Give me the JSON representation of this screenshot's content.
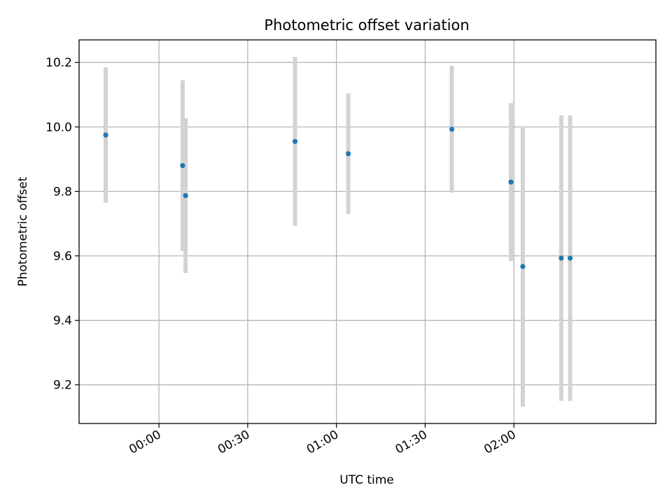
{
  "chart_data": {
    "type": "scatter",
    "title": "Photometric offset variation",
    "xlabel": "UTC time",
    "ylabel": "Photometric offset",
    "x_ticks": [
      "00:00",
      "00:30",
      "01:00",
      "01:30",
      "02:00"
    ],
    "y_ticks": [
      9.2,
      9.4,
      9.6,
      9.8,
      10.0,
      10.2
    ],
    "xlim": [
      "23:33",
      "02:48"
    ],
    "ylim": [
      9.08,
      10.27
    ],
    "grid": true,
    "colors": {
      "marker": "#1f77b4",
      "errorbar": "#d3d3d3",
      "grid": "#b0b0b0"
    },
    "series": [
      {
        "points": [
          {
            "x": "23:42",
            "y": 9.975,
            "err": 0.21
          },
          {
            "x": "00:08",
            "y": 9.88,
            "err": 0.265
          },
          {
            "x": "00:09",
            "y": 9.787,
            "err": 0.24
          },
          {
            "x": "00:46",
            "y": 9.955,
            "err": 0.262
          },
          {
            "x": "01:04",
            "y": 9.917,
            "err": 0.187
          },
          {
            "x": "01:39",
            "y": 9.993,
            "err": 0.197
          },
          {
            "x": "01:59",
            "y": 9.829,
            "err": 0.245
          },
          {
            "x": "02:03",
            "y": 9.567,
            "err": 0.435
          },
          {
            "x": "02:16",
            "y": 9.593,
            "err": 0.443
          },
          {
            "x": "02:19",
            "y": 9.593,
            "err": 0.443
          }
        ]
      }
    ]
  }
}
